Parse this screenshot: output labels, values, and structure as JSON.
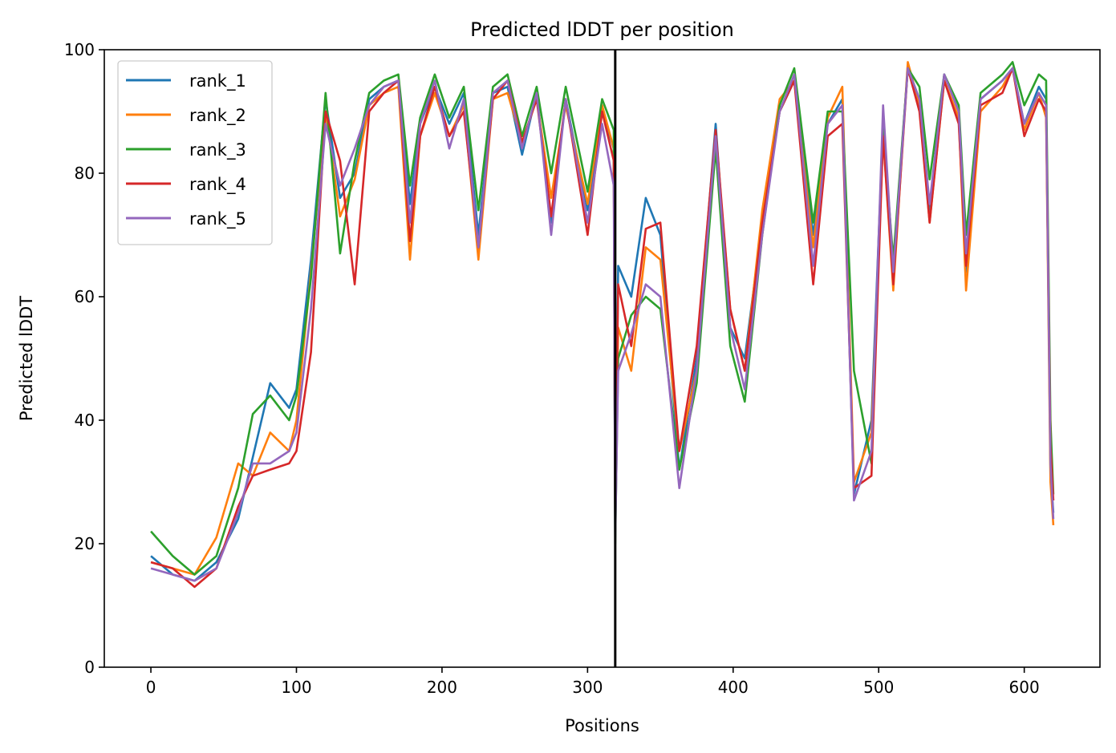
{
  "chart_data": {
    "type": "line",
    "title": "Predicted lDDT per position",
    "xlabel": "Positions",
    "ylabel": "Predicted lDDT",
    "xlim": [
      -32,
      652
    ],
    "ylim": [
      0,
      100
    ],
    "xticks": [
      0,
      100,
      200,
      300,
      400,
      500,
      600
    ],
    "yticks": [
      0,
      20,
      40,
      60,
      80,
      100
    ],
    "grid": false,
    "legend_position": "top-left",
    "vline": {
      "x": 319,
      "color": "#000000"
    },
    "series": [
      {
        "name": "rank_1",
        "color": "#1f77b4",
        "points": [
          [
            0,
            18
          ],
          [
            15,
            15
          ],
          [
            30,
            14
          ],
          [
            45,
            17
          ],
          [
            60,
            24
          ],
          [
            70,
            34
          ],
          [
            82,
            46
          ],
          [
            95,
            42
          ],
          [
            100,
            45
          ],
          [
            110,
            66
          ],
          [
            120,
            92
          ],
          [
            130,
            76
          ],
          [
            140,
            80
          ],
          [
            150,
            92
          ],
          [
            160,
            94
          ],
          [
            170,
            95
          ],
          [
            178,
            75
          ],
          [
            185,
            88
          ],
          [
            195,
            94
          ],
          [
            205,
            88
          ],
          [
            215,
            93
          ],
          [
            225,
            70
          ],
          [
            235,
            93
          ],
          [
            245,
            94
          ],
          [
            255,
            83
          ],
          [
            265,
            93
          ],
          [
            275,
            72
          ],
          [
            285,
            92
          ],
          [
            300,
            74
          ],
          [
            310,
            90
          ],
          [
            318,
            84
          ],
          [
            319,
            22
          ],
          [
            321,
            65
          ],
          [
            330,
            60
          ],
          [
            340,
            76
          ],
          [
            350,
            70
          ],
          [
            363,
            32
          ],
          [
            375,
            50
          ],
          [
            388,
            88
          ],
          [
            398,
            55
          ],
          [
            408,
            50
          ],
          [
            420,
            72
          ],
          [
            432,
            90
          ],
          [
            442,
            95
          ],
          [
            455,
            70
          ],
          [
            465,
            88
          ],
          [
            475,
            92
          ],
          [
            483,
            28
          ],
          [
            495,
            40
          ],
          [
            503,
            88
          ],
          [
            510,
            65
          ],
          [
            520,
            97
          ],
          [
            528,
            92
          ],
          [
            535,
            73
          ],
          [
            545,
            96
          ],
          [
            555,
            90
          ],
          [
            560,
            64
          ],
          [
            570,
            92
          ],
          [
            585,
            95
          ],
          [
            592,
            97
          ],
          [
            600,
            88
          ],
          [
            610,
            94
          ],
          [
            615,
            92
          ],
          [
            618,
            32
          ],
          [
            620,
            25
          ]
        ]
      },
      {
        "name": "rank_2",
        "color": "#ff7f0e",
        "points": [
          [
            0,
            17
          ],
          [
            15,
            16
          ],
          [
            30,
            15
          ],
          [
            45,
            21
          ],
          [
            60,
            33
          ],
          [
            70,
            31
          ],
          [
            82,
            38
          ],
          [
            95,
            35
          ],
          [
            100,
            40
          ],
          [
            110,
            64
          ],
          [
            120,
            90
          ],
          [
            130,
            73
          ],
          [
            140,
            79
          ],
          [
            150,
            91
          ],
          [
            160,
            93
          ],
          [
            170,
            94
          ],
          [
            178,
            66
          ],
          [
            185,
            86
          ],
          [
            195,
            93
          ],
          [
            205,
            86
          ],
          [
            215,
            91
          ],
          [
            225,
            66
          ],
          [
            235,
            92
          ],
          [
            245,
            93
          ],
          [
            255,
            85
          ],
          [
            265,
            92
          ],
          [
            275,
            76
          ],
          [
            285,
            91
          ],
          [
            300,
            75
          ],
          [
            310,
            91
          ],
          [
            318,
            84
          ],
          [
            319,
            25
          ],
          [
            321,
            55
          ],
          [
            330,
            48
          ],
          [
            340,
            68
          ],
          [
            350,
            66
          ],
          [
            363,
            35
          ],
          [
            375,
            48
          ],
          [
            388,
            86
          ],
          [
            398,
            58
          ],
          [
            408,
            48
          ],
          [
            420,
            74
          ],
          [
            432,
            92
          ],
          [
            442,
            95
          ],
          [
            455,
            68
          ],
          [
            465,
            89
          ],
          [
            475,
            94
          ],
          [
            483,
            30
          ],
          [
            495,
            38
          ],
          [
            503,
            86
          ],
          [
            510,
            61
          ],
          [
            520,
            98
          ],
          [
            528,
            91
          ],
          [
            535,
            72
          ],
          [
            545,
            95
          ],
          [
            555,
            89
          ],
          [
            560,
            61
          ],
          [
            570,
            90
          ],
          [
            585,
            94
          ],
          [
            592,
            97
          ],
          [
            600,
            87
          ],
          [
            610,
            93
          ],
          [
            615,
            89
          ],
          [
            618,
            30
          ],
          [
            620,
            23
          ]
        ]
      },
      {
        "name": "rank_3",
        "color": "#2ca02c",
        "points": [
          [
            0,
            22
          ],
          [
            15,
            18
          ],
          [
            30,
            15
          ],
          [
            45,
            18
          ],
          [
            60,
            29
          ],
          [
            70,
            41
          ],
          [
            82,
            44
          ],
          [
            95,
            40
          ],
          [
            100,
            44
          ],
          [
            110,
            63
          ],
          [
            120,
            93
          ],
          [
            130,
            67
          ],
          [
            140,
            82
          ],
          [
            150,
            93
          ],
          [
            160,
            95
          ],
          [
            170,
            96
          ],
          [
            178,
            78
          ],
          [
            185,
            89
          ],
          [
            195,
            96
          ],
          [
            205,
            89
          ],
          [
            215,
            94
          ],
          [
            225,
            74
          ],
          [
            235,
            94
          ],
          [
            245,
            96
          ],
          [
            255,
            86
          ],
          [
            265,
            94
          ],
          [
            275,
            80
          ],
          [
            285,
            94
          ],
          [
            300,
            77
          ],
          [
            310,
            92
          ],
          [
            318,
            87
          ],
          [
            319,
            20
          ],
          [
            321,
            50
          ],
          [
            330,
            57
          ],
          [
            340,
            60
          ],
          [
            350,
            58
          ],
          [
            363,
            32
          ],
          [
            375,
            46
          ],
          [
            388,
            84
          ],
          [
            398,
            52
          ],
          [
            408,
            43
          ],
          [
            420,
            70
          ],
          [
            432,
            91
          ],
          [
            442,
            97
          ],
          [
            455,
            72
          ],
          [
            465,
            90
          ],
          [
            475,
            90
          ],
          [
            483,
            48
          ],
          [
            495,
            33
          ],
          [
            503,
            87
          ],
          [
            510,
            66
          ],
          [
            520,
            97
          ],
          [
            528,
            94
          ],
          [
            535,
            79
          ],
          [
            545,
            96
          ],
          [
            555,
            91
          ],
          [
            560,
            70
          ],
          [
            570,
            93
          ],
          [
            585,
            96
          ],
          [
            592,
            98
          ],
          [
            600,
            91
          ],
          [
            610,
            96
          ],
          [
            615,
            95
          ],
          [
            618,
            40
          ],
          [
            620,
            28
          ]
        ]
      },
      {
        "name": "rank_4",
        "color": "#d62728",
        "points": [
          [
            0,
            17
          ],
          [
            15,
            16
          ],
          [
            30,
            13
          ],
          [
            45,
            16
          ],
          [
            60,
            26
          ],
          [
            70,
            31
          ],
          [
            82,
            32
          ],
          [
            95,
            33
          ],
          [
            100,
            35
          ],
          [
            110,
            51
          ],
          [
            120,
            90
          ],
          [
            130,
            82
          ],
          [
            140,
            62
          ],
          [
            150,
            90
          ],
          [
            160,
            93
          ],
          [
            170,
            95
          ],
          [
            178,
            69
          ],
          [
            185,
            86
          ],
          [
            195,
            94
          ],
          [
            205,
            86
          ],
          [
            215,
            90
          ],
          [
            225,
            68
          ],
          [
            235,
            92
          ],
          [
            245,
            95
          ],
          [
            255,
            85
          ],
          [
            265,
            92
          ],
          [
            275,
            73
          ],
          [
            285,
            92
          ],
          [
            300,
            70
          ],
          [
            310,
            90
          ],
          [
            318,
            82
          ],
          [
            319,
            24
          ],
          [
            321,
            62
          ],
          [
            330,
            52
          ],
          [
            340,
            71
          ],
          [
            350,
            72
          ],
          [
            363,
            35
          ],
          [
            375,
            52
          ],
          [
            388,
            87
          ],
          [
            398,
            58
          ],
          [
            408,
            48
          ],
          [
            420,
            72
          ],
          [
            432,
            90
          ],
          [
            442,
            95
          ],
          [
            455,
            62
          ],
          [
            465,
            86
          ],
          [
            475,
            88
          ],
          [
            483,
            29
          ],
          [
            495,
            31
          ],
          [
            503,
            86
          ],
          [
            510,
            62
          ],
          [
            520,
            97
          ],
          [
            528,
            90
          ],
          [
            535,
            72
          ],
          [
            545,
            95
          ],
          [
            555,
            88
          ],
          [
            560,
            65
          ],
          [
            570,
            91
          ],
          [
            585,
            93
          ],
          [
            592,
            97
          ],
          [
            600,
            86
          ],
          [
            610,
            92
          ],
          [
            615,
            90
          ],
          [
            618,
            36
          ],
          [
            620,
            27
          ]
        ]
      },
      {
        "name": "rank_5",
        "color": "#9467bd",
        "points": [
          [
            0,
            16
          ],
          [
            15,
            15
          ],
          [
            30,
            14
          ],
          [
            45,
            16
          ],
          [
            60,
            25
          ],
          [
            70,
            33
          ],
          [
            82,
            33
          ],
          [
            95,
            35
          ],
          [
            100,
            38
          ],
          [
            110,
            58
          ],
          [
            120,
            88
          ],
          [
            130,
            78
          ],
          [
            140,
            84
          ],
          [
            150,
            91
          ],
          [
            160,
            94
          ],
          [
            170,
            95
          ],
          [
            178,
            72
          ],
          [
            185,
            88
          ],
          [
            195,
            95
          ],
          [
            205,
            84
          ],
          [
            215,
            92
          ],
          [
            225,
            68
          ],
          [
            235,
            93
          ],
          [
            245,
            95
          ],
          [
            255,
            84
          ],
          [
            265,
            93
          ],
          [
            275,
            70
          ],
          [
            285,
            92
          ],
          [
            300,
            72
          ],
          [
            310,
            88
          ],
          [
            318,
            78
          ],
          [
            319,
            21
          ],
          [
            321,
            48
          ],
          [
            330,
            54
          ],
          [
            340,
            62
          ],
          [
            350,
            60
          ],
          [
            363,
            29
          ],
          [
            375,
            48
          ],
          [
            388,
            86
          ],
          [
            398,
            55
          ],
          [
            408,
            45
          ],
          [
            420,
            70
          ],
          [
            432,
            90
          ],
          [
            442,
            96
          ],
          [
            455,
            65
          ],
          [
            465,
            88
          ],
          [
            475,
            91
          ],
          [
            483,
            27
          ],
          [
            495,
            35
          ],
          [
            503,
            91
          ],
          [
            510,
            64
          ],
          [
            520,
            97
          ],
          [
            528,
            92
          ],
          [
            535,
            75
          ],
          [
            545,
            96
          ],
          [
            555,
            90
          ],
          [
            560,
            67
          ],
          [
            570,
            92
          ],
          [
            585,
            95
          ],
          [
            592,
            97
          ],
          [
            600,
            88
          ],
          [
            610,
            93
          ],
          [
            615,
            91
          ],
          [
            618,
            33
          ],
          [
            620,
            24
          ]
        ]
      }
    ]
  }
}
